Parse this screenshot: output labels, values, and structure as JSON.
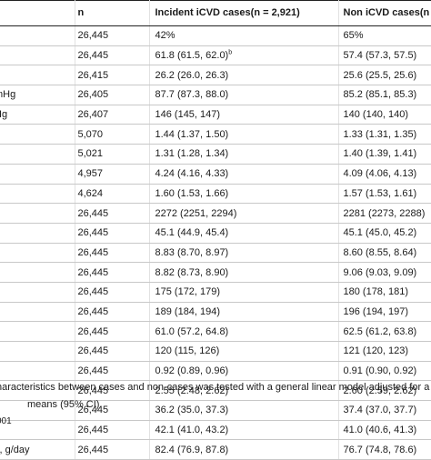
{
  "table": {
    "headers": {
      "variable": "",
      "n": "n",
      "incident": "Incident iCVD cases(n = 2,921)",
      "non": "Non iCVD cases(n"
    },
    "rows": [
      {
        "var": "",
        "n": "26,445",
        "inc": "42%",
        "inc_sup": "",
        "non": "65%"
      },
      {
        "var": "",
        "n": "26,445",
        "inc": "61.8 (61.5, 62.0)",
        "inc_sup": "b",
        "non": "57.4 (57.3, 57.5)"
      },
      {
        "var": "",
        "n": "26,415",
        "inc": "26.2 (26.0, 26.3)",
        "inc_sup": "",
        "non": "25.6 (25.5, 25.6)"
      },
      {
        "var": "mHg",
        "n": "26,405",
        "inc": "87.7 (87.3, 88.0)",
        "inc_sup": "",
        "non": "85.2 (85.1, 85.3)"
      },
      {
        "var": "Hg",
        "n": "26,407",
        "inc": "146 (145, 147)",
        "inc_sup": "",
        "non": "140 (140, 140)"
      },
      {
        "var": "",
        "n": "5,070",
        "inc": "1.44 (1.37, 1.50)",
        "inc_sup": "",
        "non": "1.33 (1.31, 1.35)"
      },
      {
        "var": "",
        "n": "5,021",
        "inc": "1.31 (1.28, 1.34)",
        "inc_sup": "",
        "non": "1.40 (1.39, 1.41)"
      },
      {
        "var": "",
        "n": "4,957",
        "inc": "4.24 (4.16, 4.33)",
        "inc_sup": "",
        "non": "4.09 (4.06, 4.13)"
      },
      {
        "var": "",
        "n": "4,624",
        "inc": "1.60 (1.53, 1.66)",
        "inc_sup": "",
        "non": "1.57 (1.53, 1.61)"
      },
      {
        "var": "",
        "n": "26,445",
        "inc": "2272 (2251, 2294)",
        "inc_sup": "",
        "non": "2281 (2273, 2288)"
      },
      {
        "var": "",
        "n": "26,445",
        "inc": "45.1 (44.9, 45.4)",
        "inc_sup": "",
        "non": "45.1 (45.0, 45.2)"
      },
      {
        "var": "",
        "n": "26,445",
        "inc": "8.83 (8.70, 8.97)",
        "inc_sup": "",
        "non": "8.60 (8.55, 8.64)"
      },
      {
        "var": "",
        "n": "26,445",
        "inc": "8.82 (8.73, 8.90)",
        "inc_sup": "",
        "non": "9.06 (9.03, 9.09)"
      },
      {
        "var": "",
        "n": "26,445",
        "inc": "175 (172, 179)",
        "inc_sup": "",
        "non": "180 (178, 181)"
      },
      {
        "var": "",
        "n": "26,445",
        "inc": "189 (184, 194)",
        "inc_sup": "",
        "non": "196 (194, 197)"
      },
      {
        "var": "",
        "n": "26,445",
        "inc": "61.0 (57.2, 64.8)",
        "inc_sup": "",
        "non": "62.5 (61.2, 63.8)"
      },
      {
        "var": "",
        "n": "26,445",
        "inc": "120 (115, 126)",
        "inc_sup": "",
        "non": "121 (120, 123)"
      },
      {
        "var": "",
        "n": "26,445",
        "inc": "0.92 (0.89, 0.96)",
        "inc_sup": "",
        "non": "0.91 (0.90, 0.92)"
      },
      {
        "var": "",
        "n": "26,445",
        "inc": "2.55 (2.48, 2.62)",
        "inc_sup": "",
        "non": "2.60 (2.59, 2.62)"
      },
      {
        "var": "",
        "n": "26,445",
        "inc": "36.2 (35.0, 37.3)",
        "inc_sup": "",
        "non": "37.4 (37.0, 37.7)"
      },
      {
        "var": "",
        "n": "26,445",
        "inc": "42.1 (41.0, 43.2)",
        "inc_sup": "",
        "non": "41.0 (40.6, 41.3)"
      },
      {
        "var": "s, g/day",
        "n": "26,445",
        "inc": "82.4 (76.9, 87.8)",
        "inc_sup": "",
        "non": "76.7 (74.8, 78.6)"
      }
    ]
  },
  "footnotes": {
    "line1": "haracteristics between cases and non-cases was tested with a general linear model adjusted for a",
    "line2": "means (95% CI).",
    "doi": "001"
  }
}
